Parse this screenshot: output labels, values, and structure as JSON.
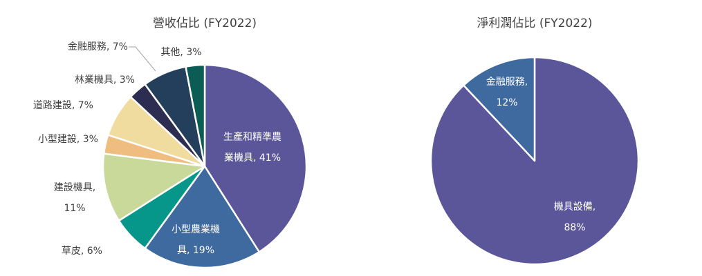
{
  "chart_data": [
    {
      "type": "pie",
      "title": "營收佔比 (FY2022)",
      "slices": [
        {
          "label": [
            "生產和精準農",
            "業機具, 41%"
          ],
          "value": 41,
          "color": "#5b559a"
        },
        {
          "label": [
            "小型農業機",
            "具, 19%"
          ],
          "value": 19,
          "color": "#3e6aa0"
        },
        {
          "label": [
            "草皮, 6%"
          ],
          "value": 6,
          "color": "#07968a"
        },
        {
          "label": [
            "建設機具,",
            "11%"
          ],
          "value": 11,
          "color": "#c8d99a"
        },
        {
          "label": [
            "小型建設, 3%"
          ],
          "value": 3,
          "color": "#f0bd80"
        },
        {
          "label": [
            "道路建設, 7%"
          ],
          "value": 7,
          "color": "#f1dca0"
        },
        {
          "label": [
            "林業機具, 3%"
          ],
          "value": 3,
          "color": "#2c2d50"
        },
        {
          "label": [
            "金融服務, 7%"
          ],
          "value": 7,
          "color": "#243f5c"
        },
        {
          "label": [
            "其他, 3%"
          ],
          "value": 3,
          "color": "#0b5c55"
        }
      ]
    },
    {
      "type": "pie",
      "title": "淨利潤佔比 (FY2022)",
      "slices": [
        {
          "label": [
            "機具設備,",
            "88%"
          ],
          "value": 88,
          "color": "#5b559a"
        },
        {
          "label": [
            "金融服務,",
            "12%"
          ],
          "value": 12,
          "color": "#3e6aa0"
        }
      ]
    }
  ]
}
